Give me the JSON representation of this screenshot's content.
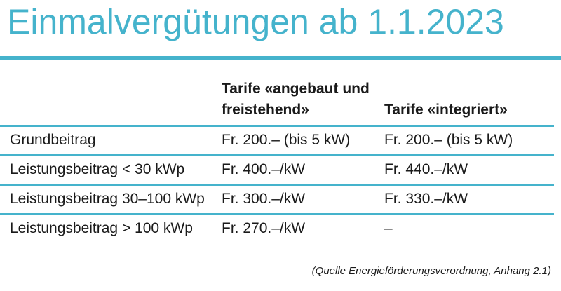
{
  "title": "Einmalvergütungen ab 1.1.2023",
  "table": {
    "header": [
      "",
      "Tarife «angebaut und freistehend»",
      "Tarife «integriert»"
    ],
    "rows": [
      [
        "Grundbeitrag",
        "Fr. 200.– (bis 5 kW)",
        "Fr. 200.– (bis 5 kW)"
      ],
      [
        "Leistungsbeitrag < 30 kWp",
        "Fr. 400.–/kW",
        "Fr. 440.–/kW"
      ],
      [
        "Leistungsbeitrag 30–100 kWp",
        "Fr. 300.–/kW",
        "Fr. 330.–/kW"
      ],
      [
        "Leistungsbeitrag > 100 kWp",
        "Fr. 270.–/kW",
        "–"
      ]
    ]
  },
  "source": "(Quelle Energieförderungsverordnung, Anhang 2.1)"
}
